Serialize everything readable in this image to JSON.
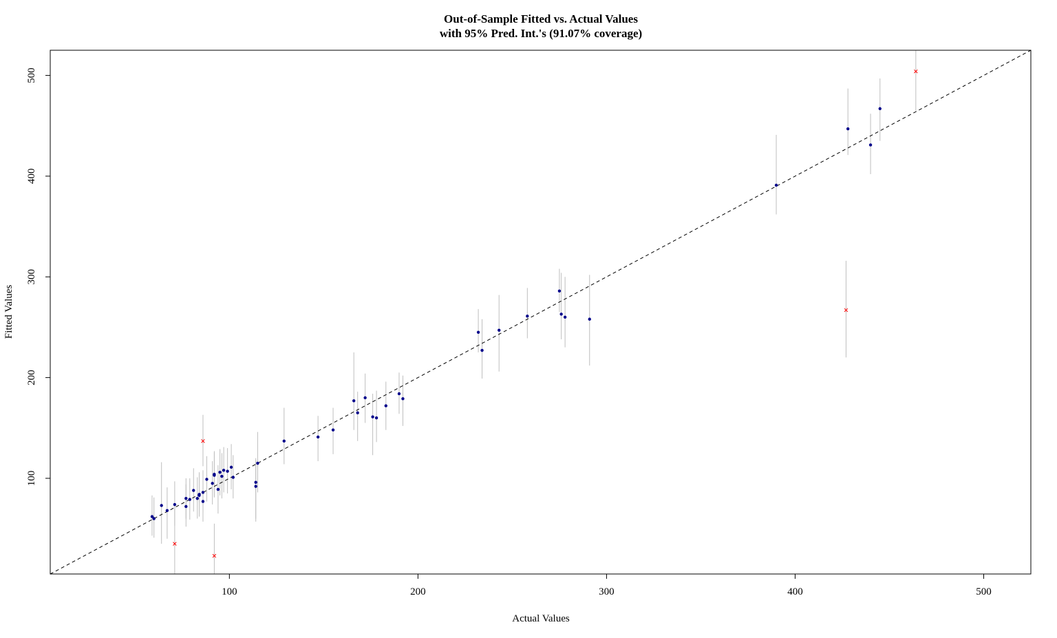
{
  "chart_data": {
    "type": "scatter",
    "title": "Out-of-Sample Fitted vs. Actual Values",
    "subtitle": "with 95% Pred. Int.'s (91.07% coverage)",
    "xlabel": "Actual Values",
    "ylabel": "Fitted Values",
    "xlim": [
      5,
      525
    ],
    "ylim": [
      5,
      525
    ],
    "xticks": [
      100,
      200,
      300,
      400,
      500
    ],
    "yticks": [
      100,
      200,
      300,
      400,
      500
    ],
    "grid": false,
    "reference_line": "y = x (dashed)",
    "colors": {
      "covered_point": "#00008b",
      "uncovered_point": "#ff0000",
      "interval": "#bebebe",
      "reference_line": "#000000"
    },
    "points": [
      {
        "x": 59,
        "y": 62,
        "lo": 43,
        "hi": 83,
        "covered": true
      },
      {
        "x": 60,
        "y": 60,
        "lo": 41,
        "hi": 81,
        "covered": true
      },
      {
        "x": 64,
        "y": 73,
        "lo": 35,
        "hi": 116,
        "covered": true
      },
      {
        "x": 67,
        "y": 68,
        "lo": 40,
        "hi": 91,
        "covered": true
      },
      {
        "x": 71,
        "y": 74,
        "lo": 53,
        "hi": 97,
        "covered": true
      },
      {
        "x": 71,
        "y": 35,
        "lo": 5,
        "hi": 70,
        "covered": false
      },
      {
        "x": 77,
        "y": 72,
        "lo": 52,
        "hi": 94,
        "covered": true
      },
      {
        "x": 77,
        "y": 80,
        "lo": 60,
        "hi": 100,
        "covered": true
      },
      {
        "x": 79,
        "y": 79,
        "lo": 59,
        "hi": 100,
        "covered": true
      },
      {
        "x": 81,
        "y": 88,
        "lo": 67,
        "hi": 110,
        "covered": true
      },
      {
        "x": 83,
        "y": 80,
        "lo": 60,
        "hi": 101,
        "covered": true
      },
      {
        "x": 84,
        "y": 83,
        "lo": 62,
        "hi": 105,
        "covered": true
      },
      {
        "x": 84,
        "y": 84,
        "lo": 64,
        "hi": 106,
        "covered": true
      },
      {
        "x": 86,
        "y": 77,
        "lo": 57,
        "hi": 98,
        "covered": true
      },
      {
        "x": 86,
        "y": 86,
        "lo": 66,
        "hi": 108,
        "covered": true
      },
      {
        "x": 86,
        "y": 137,
        "lo": 112,
        "hi": 163,
        "covered": false
      },
      {
        "x": 88,
        "y": 99,
        "lo": 77,
        "hi": 122,
        "covered": true
      },
      {
        "x": 91,
        "y": 95,
        "lo": 74,
        "hi": 117,
        "covered": true
      },
      {
        "x": 92,
        "y": 103,
        "lo": 81,
        "hi": 126,
        "covered": true
      },
      {
        "x": 92,
        "y": 104,
        "lo": 82,
        "hi": 127,
        "covered": true
      },
      {
        "x": 92,
        "y": 23,
        "lo": 5,
        "hi": 55,
        "covered": false
      },
      {
        "x": 94,
        "y": 89,
        "lo": 65,
        "hi": 113,
        "covered": true
      },
      {
        "x": 95,
        "y": 106,
        "lo": 83,
        "hi": 129,
        "covered": true
      },
      {
        "x": 96,
        "y": 102,
        "lo": 80,
        "hi": 125,
        "covered": true
      },
      {
        "x": 97,
        "y": 108,
        "lo": 86,
        "hi": 131,
        "covered": true
      },
      {
        "x": 99,
        "y": 107,
        "lo": 85,
        "hi": 130,
        "covered": true
      },
      {
        "x": 101,
        "y": 111,
        "lo": 89,
        "hi": 134,
        "covered": true
      },
      {
        "x": 102,
        "y": 101,
        "lo": 80,
        "hi": 123,
        "covered": true
      },
      {
        "x": 114,
        "y": 96,
        "lo": 60,
        "hi": 120,
        "covered": true
      },
      {
        "x": 114,
        "y": 92,
        "lo": 57,
        "hi": 118,
        "covered": true
      },
      {
        "x": 115,
        "y": 115,
        "lo": 86,
        "hi": 146,
        "covered": true
      },
      {
        "x": 129,
        "y": 137,
        "lo": 114,
        "hi": 170,
        "covered": true
      },
      {
        "x": 147,
        "y": 141,
        "lo": 117,
        "hi": 162,
        "covered": true
      },
      {
        "x": 155,
        "y": 148,
        "lo": 124,
        "hi": 170,
        "covered": true
      },
      {
        "x": 166,
        "y": 177,
        "lo": 148,
        "hi": 225,
        "covered": true
      },
      {
        "x": 168,
        "y": 165,
        "lo": 137,
        "hi": 186,
        "covered": true
      },
      {
        "x": 172,
        "y": 180,
        "lo": 155,
        "hi": 204,
        "covered": true
      },
      {
        "x": 176,
        "y": 161,
        "lo": 123,
        "hi": 184,
        "covered": true
      },
      {
        "x": 178,
        "y": 160,
        "lo": 136,
        "hi": 187,
        "covered": true
      },
      {
        "x": 183,
        "y": 172,
        "lo": 148,
        "hi": 196,
        "covered": true
      },
      {
        "x": 190,
        "y": 184,
        "lo": 164,
        "hi": 205,
        "covered": true
      },
      {
        "x": 192,
        "y": 179,
        "lo": 152,
        "hi": 202,
        "covered": true
      },
      {
        "x": 232,
        "y": 245,
        "lo": 225,
        "hi": 268,
        "covered": true
      },
      {
        "x": 234,
        "y": 227,
        "lo": 199,
        "hi": 258,
        "covered": true
      },
      {
        "x": 243,
        "y": 247,
        "lo": 206,
        "hi": 282,
        "covered": true
      },
      {
        "x": 258,
        "y": 261,
        "lo": 239,
        "hi": 289,
        "covered": true
      },
      {
        "x": 275,
        "y": 286,
        "lo": 265,
        "hi": 308,
        "covered": true
      },
      {
        "x": 276,
        "y": 263,
        "lo": 238,
        "hi": 304,
        "covered": true
      },
      {
        "x": 278,
        "y": 260,
        "lo": 230,
        "hi": 300,
        "covered": true
      },
      {
        "x": 291,
        "y": 258,
        "lo": 212,
        "hi": 302,
        "covered": true
      },
      {
        "x": 390,
        "y": 391,
        "lo": 362,
        "hi": 441,
        "covered": true
      },
      {
        "x": 427,
        "y": 267,
        "lo": 220,
        "hi": 316,
        "covered": false
      },
      {
        "x": 428,
        "y": 447,
        "lo": 421,
        "hi": 487,
        "covered": true
      },
      {
        "x": 440,
        "y": 431,
        "lo": 402,
        "hi": 462,
        "covered": true
      },
      {
        "x": 445,
        "y": 467,
        "lo": 435,
        "hi": 497,
        "covered": true
      },
      {
        "x": 464,
        "y": 504,
        "lo": 465,
        "hi": 525,
        "covered": false
      }
    ]
  }
}
